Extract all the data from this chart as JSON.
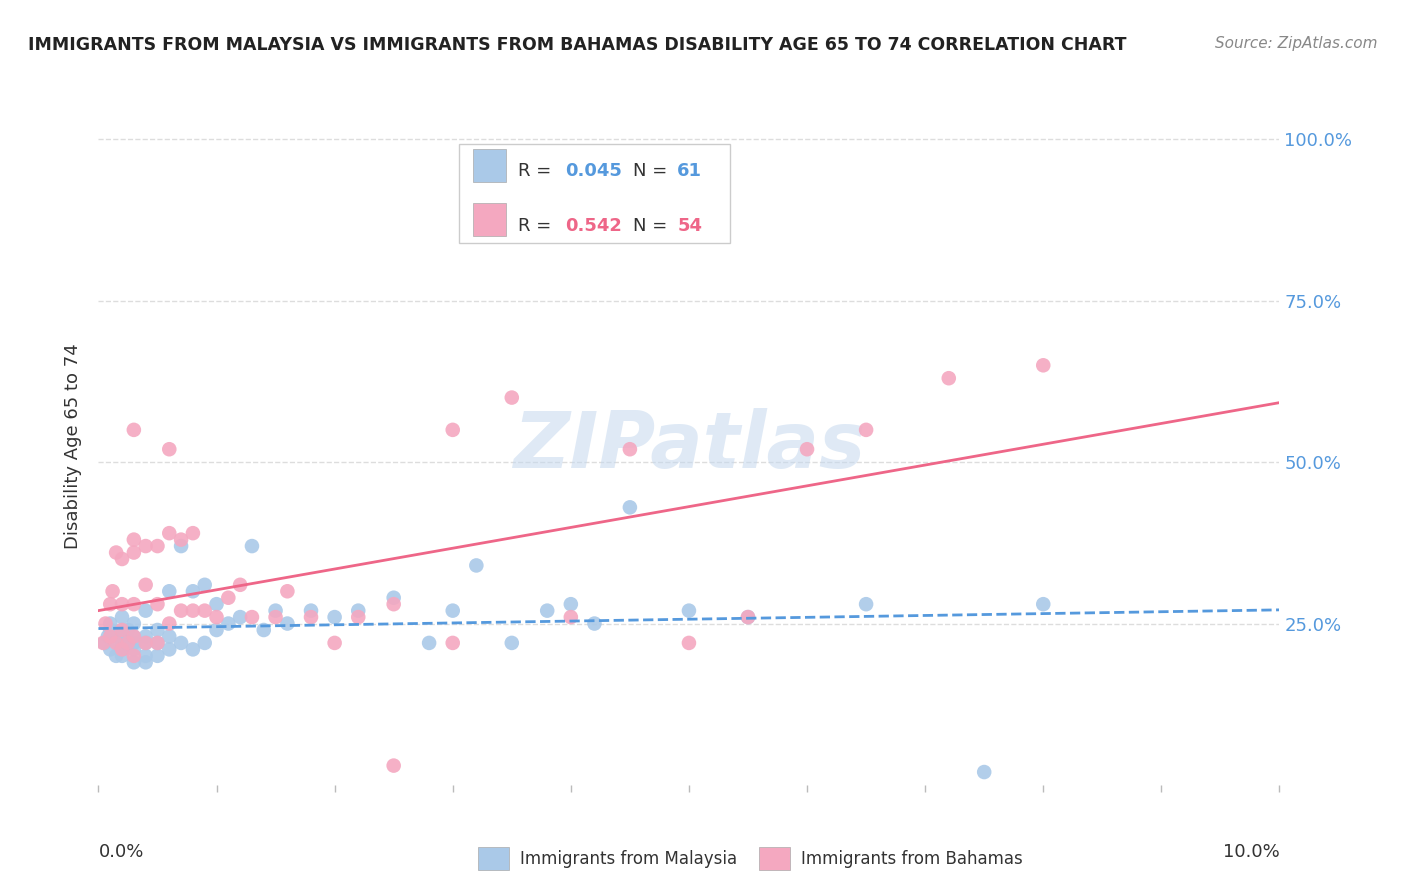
{
  "title": "IMMIGRANTS FROM MALAYSIA VS IMMIGRANTS FROM BAHAMAS DISABILITY AGE 65 TO 74 CORRELATION CHART",
  "source": "Source: ZipAtlas.com",
  "ylabel": "Disability Age 65 to 74",
  "xlim": [
    0.0,
    0.1
  ],
  "ylim": [
    0.0,
    1.05
  ],
  "malaysia_R": 0.045,
  "malaysia_N": 61,
  "bahamas_R": 0.542,
  "bahamas_N": 54,
  "malaysia_color": "#aac9e8",
  "bahamas_color": "#f4a8c0",
  "malaysia_line_color": "#5599dd",
  "bahamas_line_color": "#ee6688",
  "legend_label_1": "Immigrants from Malaysia",
  "legend_label_2": "Immigrants from Bahamas",
  "watermark": "ZIPatlas",
  "background_color": "#ffffff",
  "grid_color": "#dddddd",
  "malaysia_x": [
    0.0005,
    0.0008,
    0.001,
    0.001,
    0.001,
    0.0015,
    0.0015,
    0.002,
    0.002,
    0.002,
    0.002,
    0.002,
    0.0025,
    0.0025,
    0.003,
    0.003,
    0.003,
    0.003,
    0.003,
    0.004,
    0.004,
    0.004,
    0.004,
    0.004,
    0.005,
    0.005,
    0.005,
    0.006,
    0.006,
    0.006,
    0.007,
    0.007,
    0.008,
    0.008,
    0.009,
    0.009,
    0.01,
    0.01,
    0.011,
    0.012,
    0.013,
    0.014,
    0.015,
    0.016,
    0.018,
    0.02,
    0.022,
    0.025,
    0.028,
    0.03,
    0.032,
    0.035,
    0.038,
    0.04,
    0.042,
    0.045,
    0.05,
    0.055,
    0.065,
    0.075,
    0.08
  ],
  "malaysia_y": [
    0.22,
    0.23,
    0.21,
    0.24,
    0.25,
    0.2,
    0.23,
    0.2,
    0.21,
    0.22,
    0.24,
    0.26,
    0.22,
    0.24,
    0.19,
    0.21,
    0.22,
    0.23,
    0.25,
    0.19,
    0.2,
    0.22,
    0.23,
    0.27,
    0.2,
    0.22,
    0.24,
    0.21,
    0.23,
    0.3,
    0.22,
    0.37,
    0.21,
    0.3,
    0.22,
    0.31,
    0.24,
    0.28,
    0.25,
    0.26,
    0.37,
    0.24,
    0.27,
    0.25,
    0.27,
    0.26,
    0.27,
    0.29,
    0.22,
    0.27,
    0.34,
    0.22,
    0.27,
    0.28,
    0.25,
    0.43,
    0.27,
    0.26,
    0.28,
    0.02,
    0.28
  ],
  "bahamas_x": [
    0.0004,
    0.0006,
    0.001,
    0.001,
    0.0012,
    0.0015,
    0.0015,
    0.002,
    0.002,
    0.002,
    0.002,
    0.0025,
    0.003,
    0.003,
    0.003,
    0.003,
    0.003,
    0.004,
    0.004,
    0.004,
    0.005,
    0.005,
    0.005,
    0.006,
    0.006,
    0.007,
    0.007,
    0.008,
    0.008,
    0.009,
    0.01,
    0.011,
    0.012,
    0.013,
    0.015,
    0.016,
    0.018,
    0.02,
    0.022,
    0.025,
    0.03,
    0.03,
    0.035,
    0.04,
    0.045,
    0.05,
    0.055,
    0.06,
    0.065,
    0.072,
    0.08,
    0.025,
    0.003,
    0.006
  ],
  "bahamas_y": [
    0.22,
    0.25,
    0.23,
    0.28,
    0.3,
    0.22,
    0.36,
    0.21,
    0.24,
    0.28,
    0.35,
    0.22,
    0.2,
    0.23,
    0.28,
    0.36,
    0.38,
    0.22,
    0.31,
    0.37,
    0.22,
    0.28,
    0.37,
    0.25,
    0.39,
    0.27,
    0.38,
    0.27,
    0.39,
    0.27,
    0.26,
    0.29,
    0.31,
    0.26,
    0.26,
    0.3,
    0.26,
    0.22,
    0.26,
    0.28,
    0.55,
    0.22,
    0.6,
    0.26,
    0.52,
    0.22,
    0.26,
    0.52,
    0.55,
    0.63,
    0.65,
    0.03,
    0.55,
    0.52
  ]
}
